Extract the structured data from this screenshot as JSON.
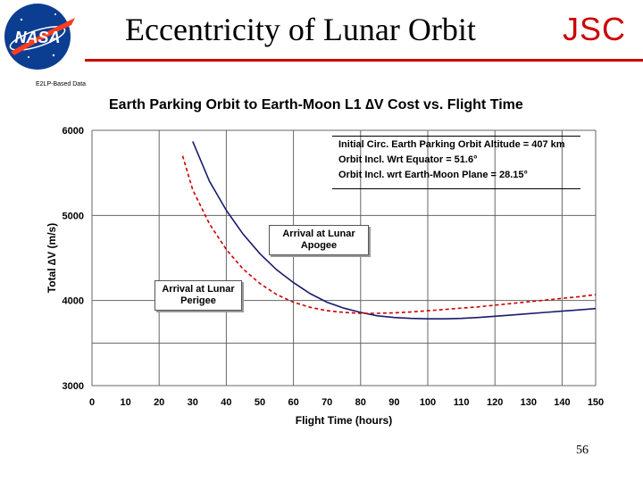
{
  "slide": {
    "title": "Eccentricity of Lunar Orbit",
    "org": "JSC",
    "small_label": "E2LP-Based Data",
    "page_number": "56",
    "logo_icon": "nasa-meatball-logo",
    "accent_color": "#cc0000"
  },
  "chart_data": {
    "type": "line",
    "title": "Earth Parking Orbit to Earth-Moon L1 ∆V Cost vs. Flight Time",
    "xlabel": "Flight Time  (hours)",
    "ylabel": "Total ∆V  (m/s)",
    "xlim": [
      0,
      150
    ],
    "ylim": [
      3000,
      6000
    ],
    "x_ticks": [
      "0",
      "10",
      "20",
      "30",
      "40",
      "50",
      "60",
      "70",
      "80",
      "90",
      "100",
      "110",
      "120",
      "130",
      "140",
      "150"
    ],
    "y_ticks": [
      "3000",
      "4000",
      "5000",
      "6000"
    ],
    "grid": true,
    "series": [
      {
        "label": "Arrival at Lunar Apogee",
        "color": "#1a1a6e",
        "style": "solid",
        "x": [
          30,
          35,
          40,
          45,
          50,
          55,
          60,
          65,
          70,
          75,
          80,
          85,
          90,
          95,
          100,
          105,
          110,
          115,
          120,
          125,
          130,
          135,
          140,
          145,
          150
        ],
        "y": [
          5870,
          5400,
          5060,
          4780,
          4550,
          4360,
          4210,
          4080,
          3980,
          3910,
          3860,
          3820,
          3800,
          3790,
          3785,
          3785,
          3790,
          3800,
          3815,
          3830,
          3845,
          3860,
          3875,
          3890,
          3905
        ]
      },
      {
        "label": "Arrival at Lunar Perigee",
        "color": "#cc0000",
        "style": "dashed",
        "x": [
          27,
          30,
          35,
          40,
          45,
          50,
          55,
          60,
          65,
          70,
          75,
          80,
          85,
          90,
          95,
          100,
          105,
          110,
          115,
          120,
          125,
          130,
          135,
          140,
          145,
          150
        ],
        "y": [
          5700,
          5300,
          4900,
          4600,
          4370,
          4200,
          4070,
          3980,
          3920,
          3880,
          3860,
          3850,
          3850,
          3855,
          3865,
          3880,
          3895,
          3910,
          3925,
          3945,
          3965,
          3985,
          4005,
          4025,
          4045,
          4070
        ]
      }
    ],
    "annotations": {
      "apogee": [
        "Arrival at Lunar",
        "Apogee"
      ],
      "perigee": [
        "Arrival at Lunar",
        "Perigee"
      ]
    },
    "info_box": [
      "Initial Circ. Earth Parking Orbit Altitude = 407 km",
      "Orbit Incl. Wrt Equator = 51.6°",
      "Orbit Incl. wrt Earth-Moon Plane = 28.15°"
    ]
  }
}
